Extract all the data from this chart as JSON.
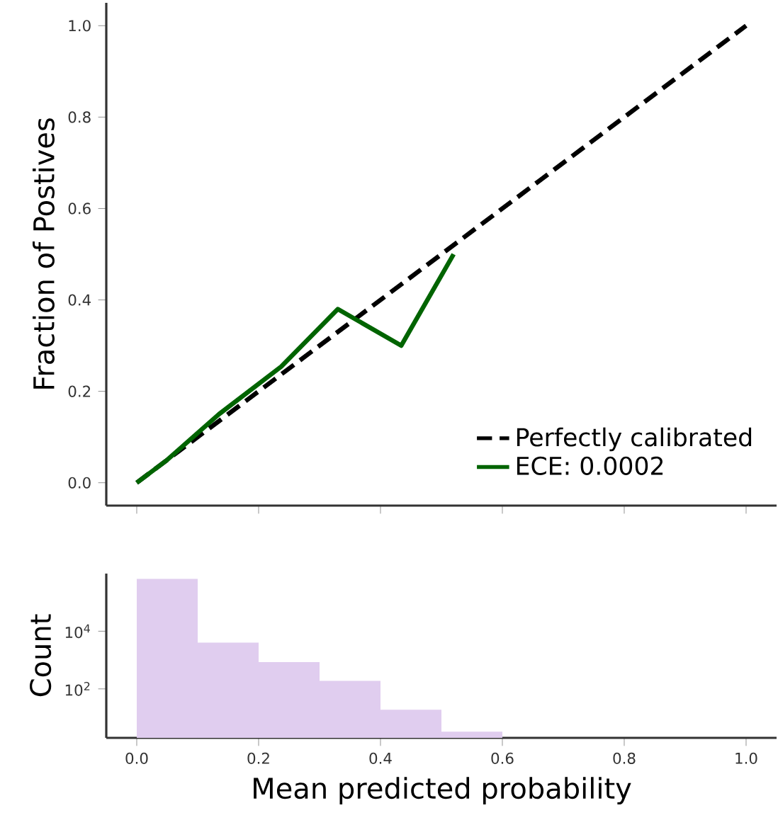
{
  "chart_data": [
    {
      "type": "line",
      "ylabel": "Fraction of Postives",
      "xlim": [
        -0.05,
        1.05
      ],
      "ylim": [
        -0.05,
        1.05
      ],
      "xticks": [
        {
          "value": 0,
          "label": null
        },
        {
          "value": 0.2,
          "label": null
        },
        {
          "value": 0.4,
          "label": null
        },
        {
          "value": 0.6,
          "label": null
        },
        {
          "value": 0.8,
          "label": null
        },
        {
          "value": 1.0,
          "label": null
        }
      ],
      "yticks": [
        {
          "value": 0,
          "label": "0.0"
        },
        {
          "value": 0.2,
          "label": "0.2"
        },
        {
          "value": 0.4,
          "label": "0.4"
        },
        {
          "value": 0.6,
          "label": "0.6"
        },
        {
          "value": 0.8,
          "label": "0.8"
        },
        {
          "value": 1.0,
          "label": "1.0"
        }
      ],
      "tick_labels": "y",
      "legend": "bottom right",
      "series": [
        {
          "name": "Perfectly calibrated",
          "color": "#000000",
          "line_style": "dashed",
          "x": [
            0,
            1
          ],
          "values": [
            0,
            1
          ]
        },
        {
          "name": "ECE: 0.0002",
          "color": "#006400",
          "line_style": "solid",
          "x": [
            0,
            0.05,
            0.135,
            0.237,
            0.33,
            0.434,
            0.52
          ],
          "values": [
            0,
            0.05,
            0.15,
            0.254,
            0.38,
            0.3,
            0.5
          ]
        }
      ]
    },
    {
      "type": "histogram",
      "xlabel": "Mean predicted probability",
      "ylabel": "Count",
      "log": "y",
      "color": "#e0cdef",
      "xlim": [
        -0.05,
        1.05
      ],
      "ylim": [
        2,
        1000000
      ],
      "xticks": [
        {
          "value": 0,
          "label": "0.0"
        },
        {
          "value": 0.2,
          "label": "0.2"
        },
        {
          "value": 0.4,
          "label": "0.4"
        },
        {
          "value": 0.6,
          "label": "0.6"
        },
        {
          "value": 0.8,
          "label": "0.8"
        },
        {
          "value": 1.0,
          "label": "1.0"
        }
      ],
      "yticks": [
        {
          "value": 100,
          "label": "10$^{2}$"
        },
        {
          "value": 10000,
          "label": "10$^{4}$"
        }
      ],
      "bins": [
        0,
        0.1,
        0.2,
        0.3,
        0.4,
        0.5,
        0.6
      ],
      "values": [
        650000,
        4000,
        850,
        190,
        19,
        3.3
      ]
    }
  ]
}
